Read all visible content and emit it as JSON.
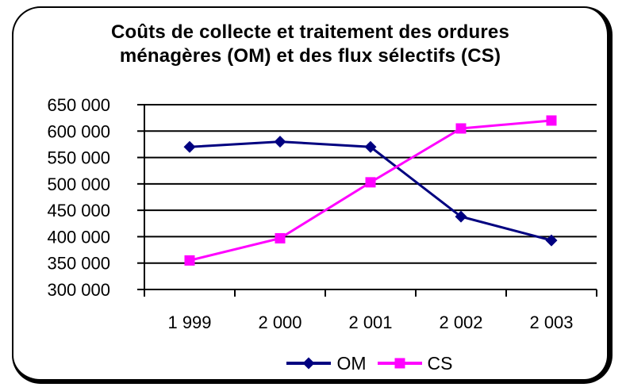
{
  "colors": {
    "background": "#ffffff",
    "frame_border": "#000000",
    "axis": "#000000",
    "om_series": "#000080",
    "cs_series": "#FF00FF"
  },
  "chart_data": {
    "type": "line",
    "title": "Coûts de collecte et traitement des ordures ménagères (OM) et des flux sélectifs (CS)",
    "categories": [
      "1 999",
      "2 000",
      "2 001",
      "2 002",
      "2 003"
    ],
    "series": [
      {
        "name": "OM",
        "color": "#000080",
        "marker": "diamond",
        "values": [
          570000,
          580000,
          570000,
          438000,
          393000
        ]
      },
      {
        "name": "CS",
        "color": "#FF00FF",
        "marker": "square",
        "values": [
          355000,
          397000,
          503000,
          605000,
          620000
        ]
      }
    ],
    "xlabel": "",
    "ylabel": "",
    "ylim": [
      300000,
      650000
    ],
    "ytick_step": 50000,
    "ytick_labels": [
      "300 000",
      "350 000",
      "400 000",
      "450 000",
      "500 000",
      "550 000",
      "600 000",
      "650 000"
    ],
    "grid": true,
    "gridline_color": "#000000",
    "legend_position": "bottom-center"
  }
}
